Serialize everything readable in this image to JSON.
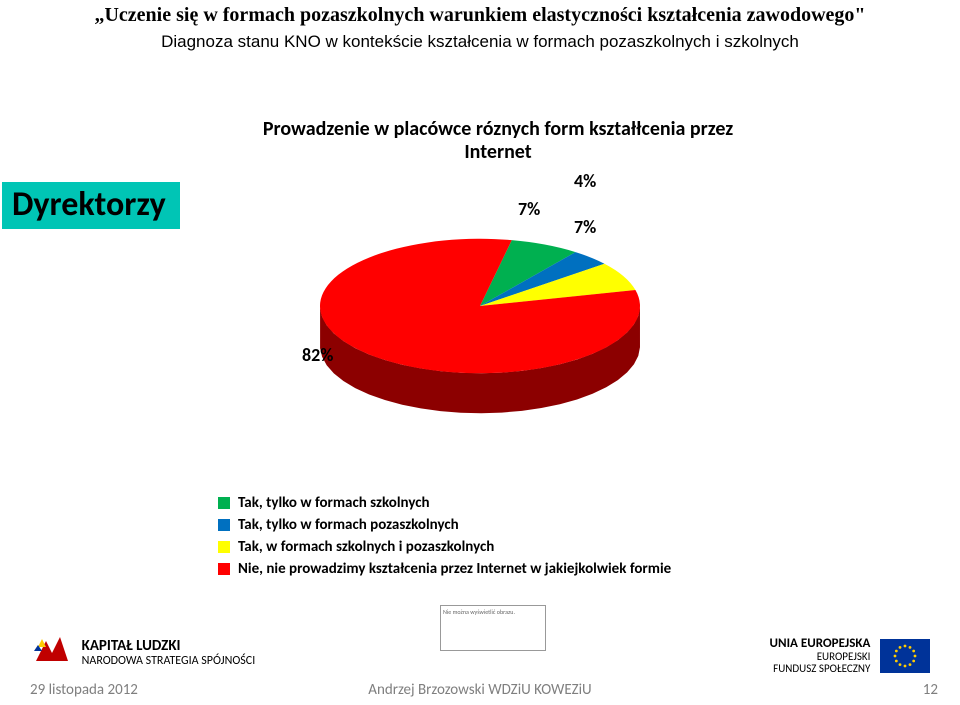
{
  "header": {
    "title": "„Uczenie się w formach pozaszkolnych warunkiem elastyczności kształcenia zawodowego\"",
    "subtitle": "Diagnoza stanu KNO w kontekście kształcenia w formach pozaszkolnych i szkolnych"
  },
  "tag": {
    "text": "Dyrektorzy",
    "bg": "#00c5b5"
  },
  "chart": {
    "type": "pie-3d",
    "title": "Prowadzenie w placówce róznych form kształłcenia przez Internet",
    "title_fontsize": 20,
    "slices": [
      {
        "label": "Tak, tylko w formach szkolnych",
        "value": 7,
        "color": "#00b050",
        "pct_label": "7%"
      },
      {
        "label": "Tak, tylko w formach pozaszkolnych",
        "value": 4,
        "color": "#0070c0",
        "pct_label": "4%"
      },
      {
        "label": "Tak, w formach szkolnych i pozaszkolnych",
        "value": 7,
        "color": "#ffff00",
        "pct_label": "7%"
      },
      {
        "label": "Nie, nie prowadzimy kształcenia przez Internet w jakiejkolwiek formie",
        "value": 82,
        "color": "#ff0000",
        "pct_label": "82%"
      }
    ],
    "background_color": "#ffffff",
    "label_fontsize": 18,
    "legend_fontsize": 15,
    "depth": 40,
    "tilt": 0.42
  },
  "logos": {
    "left": {
      "line1": "KAPITAŁ LUDZKI",
      "line2": "NARODOWA STRATEGIA SPÓJNOŚCI"
    },
    "right": {
      "line1": "UNIA EUROPEJSKA",
      "line2": "EUROPEJSKI",
      "line3": "FUNDUSZ SPOŁECZNY",
      "flag_bg": "#003399",
      "flag_star": "#ffcc00"
    },
    "placeholder_text": "Nie można wyświetlić obrazu."
  },
  "footer": {
    "date": "29 listopada 2012",
    "author": "Andrzej Brzozowski WDZiU KOWEZiU",
    "page": "12"
  }
}
